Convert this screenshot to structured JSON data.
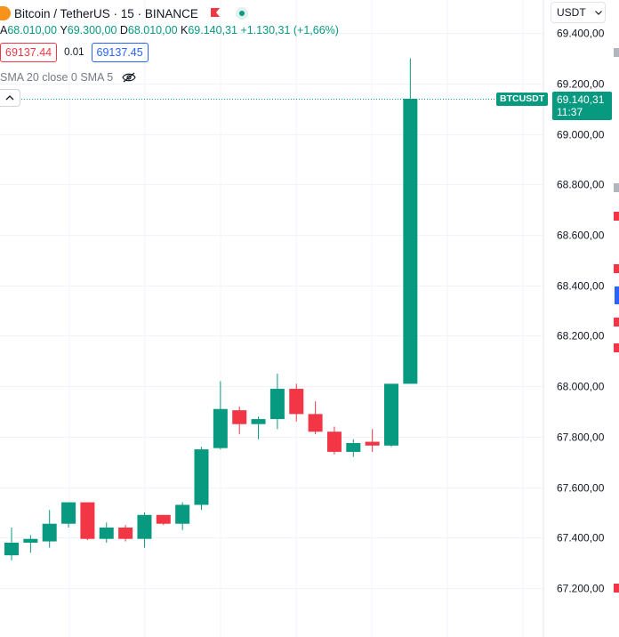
{
  "header": {
    "symbol_title": "Bitcoin / TetherUS · 15 · BINANCE",
    "ohlc": {
      "open_label": "А",
      "open": "68.010,00",
      "high_label": "Y",
      "high": "69.300,00",
      "low_label": "D",
      "low": "68.010,00",
      "close_label": "K",
      "close": "69.140,31",
      "change": "+1.130,31 (+1,66%)"
    },
    "bid": "69137.44",
    "spread": "0.01",
    "ask": "69137.45",
    "indicator_label": "SMA 20 close 0 SMA 5"
  },
  "toolbar": {
    "currency": "USDT"
  },
  "price_tag": {
    "symbol": "BTCUSDT",
    "price": "69.140,31",
    "countdown": "11:37"
  },
  "colors": {
    "up": "#089981",
    "down": "#f23645",
    "grid": "#f0f3fa",
    "text": "#131722"
  },
  "icons": [
    "bitcoin-icon",
    "flag-icon",
    "live-icon",
    "eye-crossed-icon",
    "chevron-up-icon",
    "chevron-down-icon"
  ],
  "chart_data": {
    "type": "candlestick",
    "ylim": [
      67080,
      69460
    ],
    "y_ticks": [
      67200,
      67400,
      67600,
      67800,
      68000,
      68200,
      68400,
      68600,
      68800,
      69000,
      69200,
      69400
    ],
    "y_tick_labels": [
      "67.200,00",
      "67.400,00",
      "67.600,00",
      "67.800,00",
      "68.000,00",
      "68.200,00",
      "68.400,00",
      "68.600,00",
      "68.800,00",
      "69.000,00",
      "69.200,00",
      "69.400,00"
    ],
    "last_price": 69140.31,
    "candles": [
      {
        "o": 67330,
        "h": 67440,
        "l": 67310,
        "c": 67380
      },
      {
        "o": 67380,
        "h": 67410,
        "l": 67340,
        "c": 67395
      },
      {
        "o": 67385,
        "h": 67510,
        "l": 67360,
        "c": 67455
      },
      {
        "o": 67455,
        "h": 67540,
        "l": 67440,
        "c": 67540
      },
      {
        "o": 67540,
        "h": 67540,
        "l": 67390,
        "c": 67395
      },
      {
        "o": 67395,
        "h": 67460,
        "l": 67380,
        "c": 67440
      },
      {
        "o": 67440,
        "h": 67450,
        "l": 67385,
        "c": 67395
      },
      {
        "o": 67395,
        "h": 67500,
        "l": 67360,
        "c": 67490
      },
      {
        "o": 67490,
        "h": 67490,
        "l": 67450,
        "c": 67455
      },
      {
        "o": 67455,
        "h": 67540,
        "l": 67430,
        "c": 67530
      },
      {
        "o": 67530,
        "h": 67760,
        "l": 67510,
        "c": 67750
      },
      {
        "o": 67755,
        "h": 68020,
        "l": 67750,
        "c": 67910
      },
      {
        "o": 67905,
        "h": 67920,
        "l": 67810,
        "c": 67850
      },
      {
        "o": 67850,
        "h": 67880,
        "l": 67790,
        "c": 67870
      },
      {
        "o": 67870,
        "h": 68050,
        "l": 67830,
        "c": 67990
      },
      {
        "o": 67990,
        "h": 68010,
        "l": 67860,
        "c": 67890
      },
      {
        "o": 67890,
        "h": 67940,
        "l": 67810,
        "c": 67820
      },
      {
        "o": 67820,
        "h": 67840,
        "l": 67730,
        "c": 67740
      },
      {
        "o": 67740,
        "h": 67790,
        "l": 67720,
        "c": 67775
      },
      {
        "o": 67780,
        "h": 67830,
        "l": 67740,
        "c": 67765
      },
      {
        "o": 67765,
        "h": 68010,
        "l": 67760,
        "c": 68010
      },
      {
        "o": 68010,
        "h": 69300,
        "l": 68010,
        "c": 69140
      }
    ]
  }
}
